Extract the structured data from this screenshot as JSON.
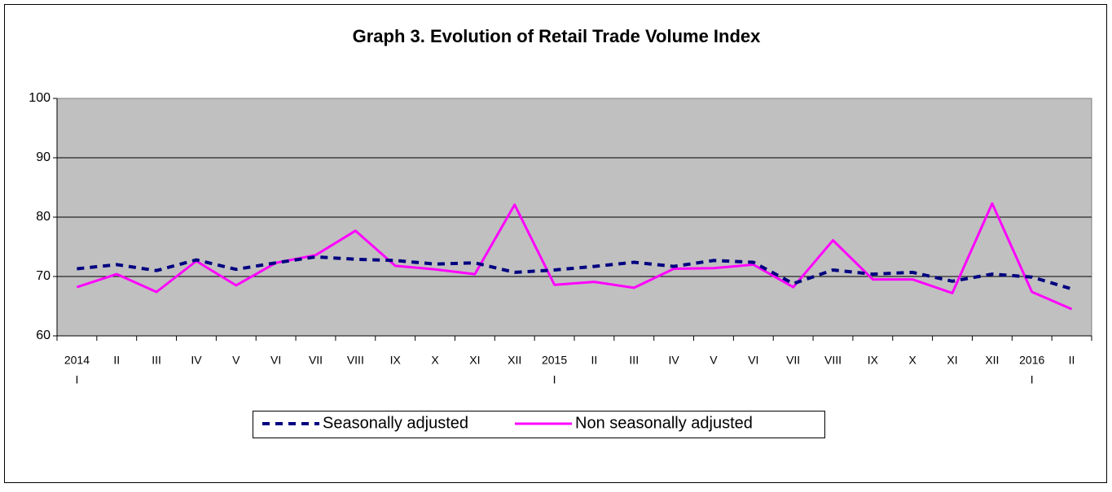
{
  "chart_data": {
    "type": "line",
    "title": "Graph 3. Evolution of Retail Trade Volume Index",
    "categories": [
      [
        "2014",
        "I"
      ],
      [
        "II"
      ],
      [
        "III"
      ],
      [
        "IV"
      ],
      [
        "V"
      ],
      [
        "VI"
      ],
      [
        "VII"
      ],
      [
        "VIII"
      ],
      [
        "IX"
      ],
      [
        "X"
      ],
      [
        "XI"
      ],
      [
        "XII"
      ],
      [
        "2015",
        "I"
      ],
      [
        "II"
      ],
      [
        "III"
      ],
      [
        "IV"
      ],
      [
        "V"
      ],
      [
        "VI"
      ],
      [
        "VII"
      ],
      [
        "VIII"
      ],
      [
        "IX"
      ],
      [
        "X"
      ],
      [
        "XI"
      ],
      [
        "XII"
      ],
      [
        "2016",
        "I"
      ],
      [
        "II"
      ]
    ],
    "series": [
      {
        "name": "Seasonally adjusted",
        "color": "#000080",
        "dash": true,
        "values": [
          71.3,
          72,
          71,
          72.8,
          71.2,
          72.3,
          73.3,
          72.9,
          72.7,
          72.1,
          72.3,
          70.7,
          71.1,
          71.7,
          72.4,
          71.7,
          72.7,
          72.4,
          68.8,
          71.1,
          70.4,
          70.7,
          69.2,
          70.4,
          69.9,
          67.9
        ]
      },
      {
        "name": "Non seasonally adjusted",
        "color": "#ff00ff",
        "dash": false,
        "values": [
          68.2,
          70.4,
          67.4,
          72.6,
          68.5,
          72.3,
          73.6,
          77.7,
          71.8,
          71.2,
          70.4,
          82.1,
          68.6,
          69.1,
          68.1,
          71.3,
          71.4,
          72,
          68.2,
          76.1,
          69.5,
          69.5,
          67.2,
          82.3,
          67.4,
          64.5
        ]
      }
    ],
    "ylim": [
      60,
      100
    ],
    "yticks": [
      60,
      70,
      80,
      90,
      100
    ],
    "grid": true
  }
}
